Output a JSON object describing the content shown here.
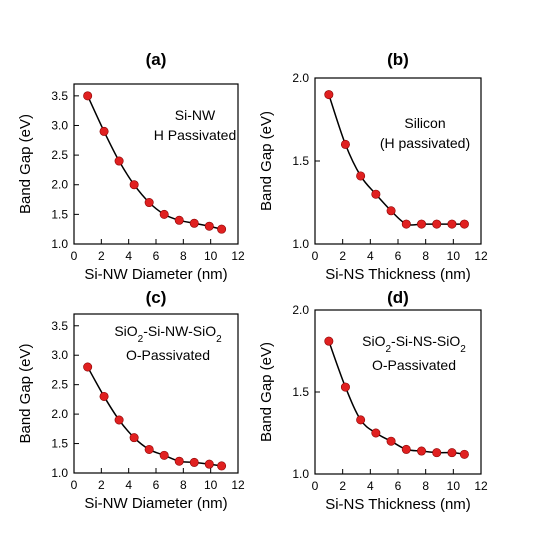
{
  "chart_data": [
    {
      "type": "scatter",
      "panel_label": "(a)",
      "xlabel": "Si-NW Diameter (nm)",
      "ylabel": "Band Gap (eV)",
      "xlim": [
        0,
        12
      ],
      "ylim": [
        1.0,
        3.7
      ],
      "xticks": [
        0,
        2,
        4,
        6,
        8,
        10,
        12
      ],
      "yticks": [
        1.0,
        1.5,
        2.0,
        2.5,
        3.0,
        3.5
      ],
      "ytick_labels": [
        "1.0",
        "1.5",
        "2.0",
        "2.5",
        "3.0",
        "3.5"
      ],
      "annotations": [
        "Si-NW",
        "H Passivated"
      ],
      "series": [
        {
          "x": [
            1.0,
            2.2,
            3.3,
            4.4,
            5.5,
            6.6,
            7.7,
            8.8,
            9.9,
            10.8
          ],
          "y": [
            3.5,
            2.9,
            2.4,
            2.0,
            1.7,
            1.5,
            1.4,
            1.35,
            1.3,
            1.25
          ]
        }
      ],
      "marker_color": "#e02020",
      "line_color": "#000000"
    },
    {
      "type": "scatter",
      "panel_label": "(b)",
      "xlabel": "Si-NS Thickness (nm)",
      "ylabel": "Band Gap (eV)",
      "xlim": [
        0,
        12
      ],
      "ylim": [
        1.0,
        2.0
      ],
      "xticks": [
        0,
        2,
        4,
        6,
        8,
        10,
        12
      ],
      "yticks": [
        1.0,
        1.5,
        2.0
      ],
      "ytick_labels": [
        "1.0",
        "1.5",
        "2.0"
      ],
      "annotations": [
        "Silicon",
        "(H passivated)"
      ],
      "series": [
        {
          "x": [
            1.0,
            2.2,
            3.3,
            4.4,
            5.5,
            6.6,
            7.7,
            8.8,
            9.9,
            10.8
          ],
          "y": [
            1.9,
            1.6,
            1.41,
            1.3,
            1.2,
            1.12,
            1.12,
            1.12,
            1.12,
            1.12
          ]
        }
      ],
      "marker_color": "#e02020",
      "line_color": "#000000"
    },
    {
      "type": "scatter",
      "panel_label": "(c)",
      "xlabel": "Si-NW Diameter (nm)",
      "ylabel": "Band Gap (eV)",
      "xlim": [
        0,
        12
      ],
      "ylim": [
        1.0,
        3.7
      ],
      "xticks": [
        0,
        2,
        4,
        6,
        8,
        10,
        12
      ],
      "yticks": [
        1.0,
        1.5,
        2.0,
        2.5,
        3.0,
        3.5
      ],
      "ytick_labels": [
        "1.0",
        "1.5",
        "2.0",
        "2.5",
        "3.0",
        "3.5"
      ],
      "annotations": [
        "SiO2-Si-NW-SiO2",
        "O-Passivated"
      ],
      "series": [
        {
          "x": [
            1.0,
            2.2,
            3.3,
            4.4,
            5.5,
            6.6,
            7.7,
            8.8,
            9.9,
            10.8
          ],
          "y": [
            2.8,
            2.3,
            1.9,
            1.6,
            1.4,
            1.3,
            1.2,
            1.18,
            1.15,
            1.12
          ]
        }
      ],
      "marker_color": "#e02020",
      "line_color": "#000000"
    },
    {
      "type": "scatter",
      "panel_label": "(d)",
      "xlabel": "Si-NS Thickness (nm)",
      "ylabel": "Band Gap (eV)",
      "xlim": [
        0,
        12
      ],
      "ylim": [
        1.0,
        2.0
      ],
      "xticks": [
        0,
        2,
        4,
        6,
        8,
        10,
        12
      ],
      "yticks": [
        1.0,
        1.5,
        2.0
      ],
      "ytick_labels": [
        "1.0",
        "1.5",
        "2.0"
      ],
      "annotations": [
        "SiO2-Si-NS-SiO2",
        "O-Passivated"
      ],
      "series": [
        {
          "x": [
            1.0,
            2.2,
            3.3,
            4.4,
            5.5,
            6.6,
            7.7,
            8.8,
            9.9,
            10.8
          ],
          "y": [
            1.81,
            1.53,
            1.33,
            1.25,
            1.2,
            1.15,
            1.14,
            1.13,
            1.13,
            1.12
          ]
        }
      ],
      "marker_color": "#e02020",
      "line_color": "#000000"
    }
  ]
}
